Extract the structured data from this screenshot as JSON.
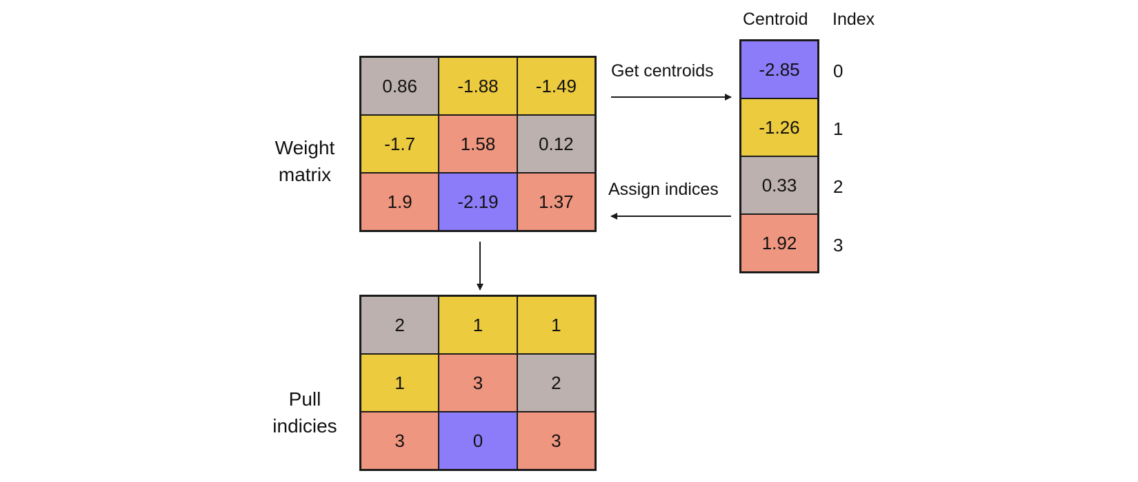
{
  "colors": {
    "grey": "#bcb1ae",
    "yellow": "#eccb3e",
    "salmon": "#ef9680",
    "purple": "#8d7cf9"
  },
  "weight_matrix": {
    "label_line1": "Weight",
    "label_line2": "matrix",
    "rows": [
      [
        {
          "value": "0.86",
          "color": "grey"
        },
        {
          "value": "-1.88",
          "color": "yellow"
        },
        {
          "value": "-1.49",
          "color": "yellow"
        }
      ],
      [
        {
          "value": "-1.7",
          "color": "yellow"
        },
        {
          "value": "1.58",
          "color": "salmon"
        },
        {
          "value": "0.12",
          "color": "grey"
        }
      ],
      [
        {
          "value": "1.9",
          "color": "salmon"
        },
        {
          "value": "-2.19",
          "color": "purple"
        },
        {
          "value": "1.37",
          "color": "salmon"
        }
      ]
    ]
  },
  "pull_indices": {
    "label_line1": "Pull",
    "label_line2": "indicies",
    "rows": [
      [
        {
          "value": "2",
          "color": "grey"
        },
        {
          "value": "1",
          "color": "yellow"
        },
        {
          "value": "1",
          "color": "yellow"
        }
      ],
      [
        {
          "value": "1",
          "color": "yellow"
        },
        {
          "value": "3",
          "color": "salmon"
        },
        {
          "value": "2",
          "color": "grey"
        }
      ],
      [
        {
          "value": "3",
          "color": "salmon"
        },
        {
          "value": "0",
          "color": "purple"
        },
        {
          "value": "3",
          "color": "salmon"
        }
      ]
    ]
  },
  "centroids": {
    "centroid_header": "Centroid",
    "index_header": "Index",
    "items": [
      {
        "value": "-2.85",
        "index": "0",
        "color": "purple"
      },
      {
        "value": "-1.26",
        "index": "1",
        "color": "yellow"
      },
      {
        "value": "0.33",
        "index": "2",
        "color": "grey"
      },
      {
        "value": "1.92",
        "index": "3",
        "color": "salmon"
      }
    ]
  },
  "arrows": {
    "get_centroids": "Get centroids",
    "assign_indices": "Assign indices"
  }
}
